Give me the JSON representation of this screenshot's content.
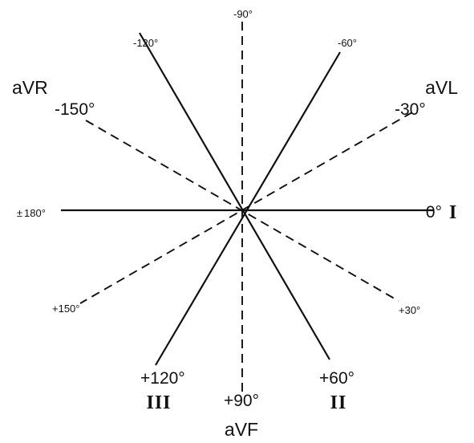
{
  "axes": [
    {
      "id": "axis-0-180",
      "style": "solid"
    },
    {
      "id": "axis-60",
      "style": "solid"
    },
    {
      "id": "axis-120",
      "style": "solid"
    },
    {
      "id": "axis-90",
      "style": "dashed"
    },
    {
      "id": "axis-30",
      "style": "dashed"
    },
    {
      "id": "axis-150",
      "style": "dashed"
    }
  ],
  "labels": {
    "minus90": "-90°",
    "minus120": "-120°",
    "minus60": "-60°",
    "minus150": "-150°",
    "minus30": "-30°",
    "zero": "0°",
    "lead_I": "I",
    "deg180": "180°",
    "deg180_sign": "±",
    "plus150": "+150°",
    "plus30": "+30°",
    "plus120": "+120°",
    "plus60": "+60°",
    "plus90": "+90°",
    "lead_III": "III",
    "lead_II": "II",
    "lead_aVR": "aVR",
    "lead_aVL": "aVL",
    "lead_aVF": "aVF"
  },
  "colors": {
    "ink": "#111111",
    "background": "#ffffff"
  }
}
